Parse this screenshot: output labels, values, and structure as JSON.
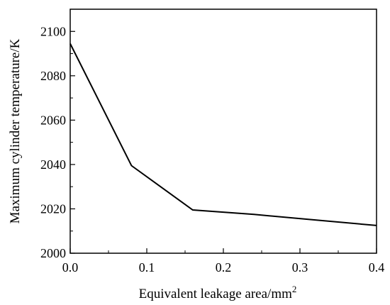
{
  "chart_data": {
    "type": "line",
    "title": "",
    "xlabel": "Equivalent leakage area/mm",
    "xlabel_superscript": "2",
    "ylabel": "Maximum cylinder temperature/K",
    "xlim": [
      0.0,
      0.4
    ],
    "ylim": [
      2000,
      2110
    ],
    "x_ticks": [
      0.0,
      0.1,
      0.2,
      0.3,
      0.4
    ],
    "x_tick_labels": [
      "0.0",
      "0.1",
      "0.2",
      "0.3",
      "0.4"
    ],
    "y_ticks": [
      2000,
      2020,
      2040,
      2060,
      2080,
      2100
    ],
    "y_tick_labels": [
      "2000",
      "2020",
      "2040",
      "2060",
      "2080",
      "2100"
    ],
    "grid": false,
    "legend": "none",
    "series": [
      {
        "x": [
          0.0,
          0.08,
          0.16,
          0.24,
          0.32,
          0.4
        ],
        "y": [
          2094.5,
          2039.5,
          2019.5,
          2017.5,
          2015.0,
          2012.5
        ],
        "color": "#000000"
      }
    ]
  }
}
